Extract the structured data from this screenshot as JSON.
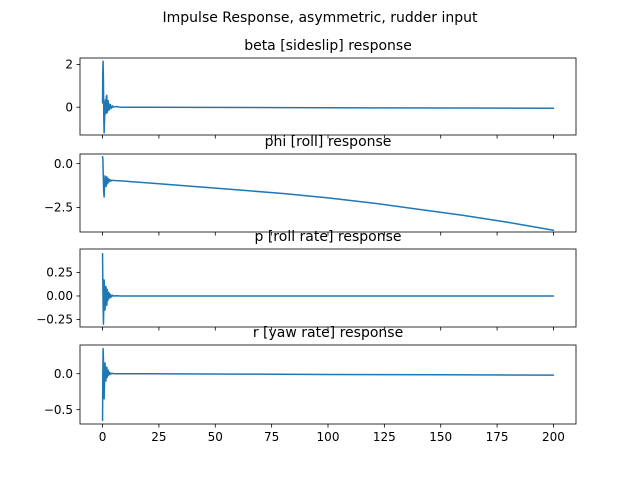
{
  "figure": {
    "suptitle": "Impulse Response, asymmetric, rudder input",
    "line_color": "#1f77b4"
  },
  "chart_data": [
    {
      "type": "line",
      "title": "beta [sideslip] response",
      "xlim": [
        -10,
        210
      ],
      "ylim": [
        -1.3,
        2.3
      ],
      "yticks": [
        2,
        0
      ],
      "ytick_labels": [
        "2",
        "0"
      ],
      "xticks": [
        0,
        25,
        50,
        75,
        100,
        125,
        150,
        175,
        200
      ],
      "xtick_labels": [],
      "series": [
        {
          "x": [
            0,
            0.1,
            0.25,
            0.4,
            0.55,
            0.7,
            0.9,
            1.1,
            1.3,
            1.5,
            1.7,
            1.9,
            2.1,
            2.3,
            2.5,
            2.7,
            2.9,
            3.2,
            3.5,
            4,
            4.5,
            5,
            6,
            8,
            12,
            20,
            40,
            80,
            120,
            160,
            200
          ],
          "y": [
            0.2,
            1.6,
            2.15,
            1.2,
            -0.5,
            -1.2,
            -0.6,
            0.2,
            0.35,
            -0.3,
            0.5,
            0.55,
            -0.25,
            0.1,
            0.3,
            -0.15,
            0.15,
            -0.1,
            0.12,
            -0.05,
            0.06,
            0.0,
            0.03,
            0.0,
            0.0,
            0.0,
            -0.01,
            -0.02,
            -0.03,
            -0.04,
            -0.05
          ]
        }
      ]
    },
    {
      "type": "line",
      "title": "phi [roll]  response",
      "xlim": [
        -10,
        210
      ],
      "ylim": [
        -3.9,
        0.55
      ],
      "yticks": [
        0,
        -2.5
      ],
      "ytick_labels": [
        "0.0",
        "−2.5"
      ],
      "xticks": [
        0,
        25,
        50,
        75,
        100,
        125,
        150,
        175,
        200
      ],
      "xtick_labels": [],
      "series": [
        {
          "x": [
            0,
            0.15,
            0.3,
            0.5,
            0.7,
            0.9,
            1.1,
            1.3,
            1.6,
            1.9,
            2.2,
            2.5,
            2.8,
            3.2,
            3.6,
            4,
            5,
            6,
            8,
            20,
            40,
            60,
            80,
            100,
            120,
            140,
            160,
            180,
            200
          ],
          "y": [
            0.4,
            0.25,
            -0.6,
            -1.55,
            -1.9,
            -1.3,
            -0.7,
            -0.85,
            -1.3,
            -0.75,
            -1.15,
            -0.85,
            -1.05,
            -0.9,
            -1.0,
            -0.95,
            -0.96,
            -0.97,
            -0.98,
            -1.1,
            -1.3,
            -1.5,
            -1.7,
            -1.95,
            -2.25,
            -2.6,
            -2.95,
            -3.35,
            -3.8
          ]
        }
      ]
    },
    {
      "type": "line",
      "title": "p [roll rate] response",
      "xlim": [
        -10,
        210
      ],
      "ylim": [
        -0.33,
        0.5
      ],
      "yticks": [
        0.25,
        0,
        -0.25
      ],
      "ytick_labels": [
        "0.25",
        "0.00",
        "−0.25"
      ],
      "xticks": [
        0,
        25,
        50,
        75,
        100,
        125,
        150,
        175,
        200
      ],
      "xtick_labels": [],
      "series": [
        {
          "x": [
            0,
            0.1,
            0.25,
            0.4,
            0.55,
            0.7,
            0.9,
            1.1,
            1.3,
            1.5,
            1.7,
            1.9,
            2.1,
            2.3,
            2.5,
            2.7,
            3,
            3.3,
            3.6,
            4,
            4.5,
            5,
            6,
            8,
            12,
            20,
            60,
            100,
            150,
            200
          ],
          "y": [
            0.45,
            0.2,
            -0.1,
            -0.3,
            -0.1,
            0.17,
            0.08,
            -0.15,
            -0.05,
            0.1,
            0.02,
            -0.1,
            0.07,
            -0.05,
            0.04,
            -0.03,
            0.03,
            -0.02,
            0.015,
            -0.01,
            0.008,
            0.0,
            0.003,
            0.0,
            0.0,
            0.0,
            0.0,
            0.0,
            0.0,
            0.0
          ]
        }
      ]
    },
    {
      "type": "line",
      "title": "r [yaw rate] response",
      "xlim": [
        -10,
        210
      ],
      "ylim": [
        -0.7,
        0.4
      ],
      "yticks": [
        0,
        -0.5
      ],
      "ytick_labels": [
        "0.0",
        "−0.5"
      ],
      "xticks": [
        0,
        25,
        50,
        75,
        100,
        125,
        150,
        175,
        200
      ],
      "xtick_labels": [
        "0",
        "25",
        "50",
        "75",
        "100",
        "125",
        "150",
        "175",
        "200"
      ],
      "series": [
        {
          "x": [
            0,
            0.1,
            0.25,
            0.4,
            0.55,
            0.7,
            0.9,
            1.1,
            1.3,
            1.5,
            1.7,
            1.9,
            2.1,
            2.3,
            2.5,
            2.7,
            3,
            3.3,
            3.6,
            4,
            4.5,
            5,
            6,
            8,
            12,
            20,
            60,
            100,
            150,
            200
          ],
          "y": [
            -0.65,
            -0.1,
            0.35,
            0.2,
            -0.15,
            -0.35,
            -0.1,
            0.15,
            0.05,
            -0.1,
            0.07,
            0.09,
            -0.05,
            0.03,
            0.05,
            -0.02,
            0.02,
            -0.01,
            0.01,
            0.0,
            0.005,
            0.0,
            0.0,
            0.0,
            0.0,
            0.0,
            -0.005,
            -0.01,
            -0.015,
            -0.02
          ]
        }
      ]
    }
  ]
}
